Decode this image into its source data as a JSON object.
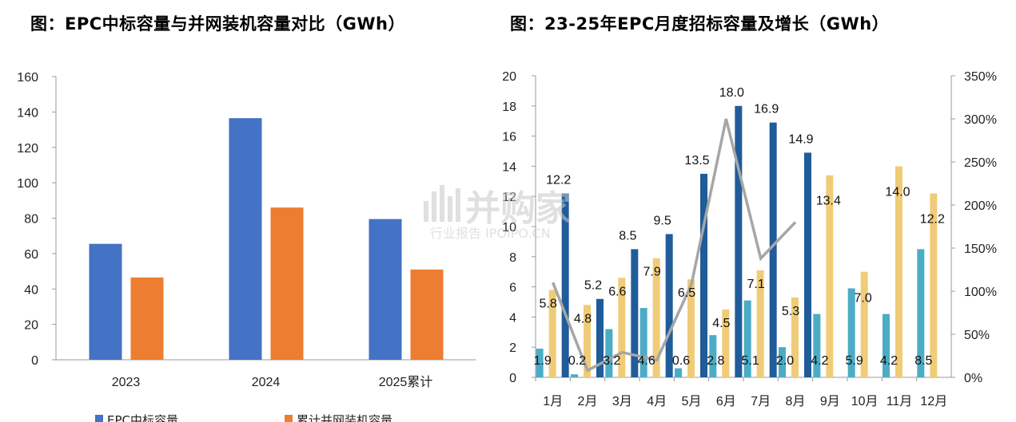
{
  "titles": {
    "left": "图：EPC中标容量与并网装机容量对比（GWh）",
    "right": "图：23-25年EPC月度招标容量及增长（GWh）"
  },
  "watermark": {
    "main": "并购家",
    "sub": "行业报告 IPOIPO.CN"
  },
  "colors": {
    "epc": "#4472C4",
    "grid": "#ED7D31",
    "y23": "#4BACC6",
    "y24": "#F0CC78",
    "y25": "#1F5C99",
    "growth": "#A6A6A6"
  },
  "chart_data": [
    {
      "type": "bar",
      "title": "图：EPC中标容量与并网装机容量对比（GWh）",
      "categories": [
        "2023",
        "2024",
        "2025累计"
      ],
      "series": [
        {
          "name": "EPC中标容量",
          "values": [
            65.5,
            136.5,
            79.5
          ]
        },
        {
          "name": "累计并网装机容量",
          "values": [
            46.5,
            86,
            51
          ]
        }
      ],
      "yticks": [
        "0",
        "20",
        "40",
        "60",
        "80",
        "100",
        "120",
        "140",
        "160"
      ],
      "ylim": [
        0,
        160
      ],
      "legend": "bottom"
    },
    {
      "type": "bar",
      "title": "图：23-25年EPC月度招标容量及增长（GWh）",
      "categories": [
        "1月",
        "2月",
        "3月",
        "4月",
        "5月",
        "6月",
        "7月",
        "8月",
        "9月",
        "10月",
        "11月",
        "12月"
      ],
      "series": [
        {
          "values": [
            1.9,
            0.2,
            3.2,
            4.6,
            0.6,
            2.8,
            5.1,
            2.0,
            4.2,
            5.9,
            4.2,
            8.5
          ]
        },
        {
          "values": [
            5.8,
            4.8,
            6.6,
            7.9,
            6.5,
            4.5,
            7.1,
            5.3,
            13.4,
            7.0,
            14.0,
            12.2
          ]
        },
        {
          "values": [
            12.2,
            5.2,
            8.5,
            9.5,
            13.5,
            18.0,
            16.9,
            14.9,
            null,
            null,
            null,
            null
          ]
        }
      ],
      "line_series": {
        "axis": "right",
        "values": [
          110,
          8,
          29,
          20,
          108,
          300,
          138,
          180,
          null,
          null,
          null,
          null
        ]
      },
      "labels": {
        "y23": [
          "1.9",
          "0.2",
          "3.2",
          "4.6",
          "0.6",
          "2.8",
          "5.1",
          "2.0",
          "4.2",
          "5.9",
          "4.2",
          "8.5"
        ],
        "y24": [
          "5.8",
          "4.8",
          "6.6",
          "7.9",
          "6.5",
          "4.5",
          "7.1",
          "5.3",
          "13.4",
          "7.0",
          "14.0",
          "12.2"
        ],
        "y25": [
          "12.2",
          "5.2",
          "8.5",
          "9.5",
          "13.5",
          "18.0",
          "16.9",
          "14.9",
          "",
          "",
          "",
          ""
        ]
      },
      "yticks": [
        "0",
        "2",
        "4",
        "6",
        "8",
        "10",
        "12",
        "14",
        "16",
        "18",
        "20"
      ],
      "y2ticks": [
        "0%",
        "50%",
        "100%",
        "150%",
        "200%",
        "250%",
        "300%",
        "350%"
      ],
      "ylim": [
        0,
        20
      ],
      "y2lim": [
        0,
        350
      ]
    }
  ]
}
